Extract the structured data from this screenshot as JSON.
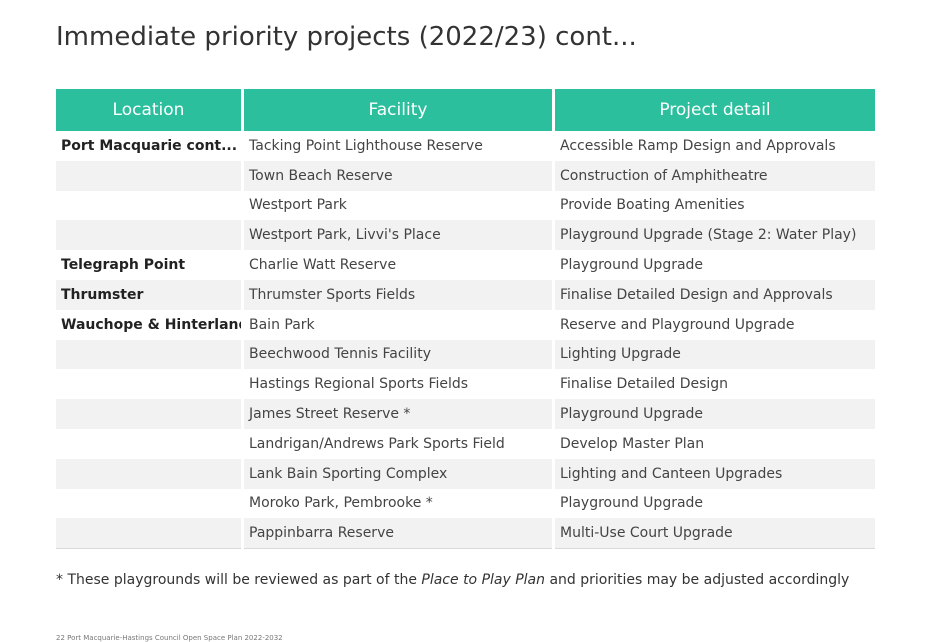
{
  "title": "Immediate priority projects (2022/23) cont...",
  "table": {
    "headers": [
      "Location",
      "Facility",
      "Project detail"
    ],
    "rows": [
      {
        "location": "Port Macquarie cont...",
        "facility": "Tacking Point Lighthouse Reserve",
        "detail": "Accessible Ramp Design and Approvals"
      },
      {
        "location": "",
        "facility": "Town Beach Reserve",
        "detail": "Construction of Amphitheatre"
      },
      {
        "location": "",
        "facility": "Westport Park",
        "detail": "Provide Boating Amenities"
      },
      {
        "location": "",
        "facility": "Westport Park, Livvi's Place",
        "detail": "Playground Upgrade (Stage 2: Water Play)"
      },
      {
        "location": "Telegraph Point",
        "facility": "Charlie Watt Reserve",
        "detail": "Playground Upgrade"
      },
      {
        "location": "Thrumster",
        "facility": "Thrumster Sports Fields",
        "detail": "Finalise Detailed Design and Approvals"
      },
      {
        "location": "Wauchope & Hinterland",
        "facility": "Bain Park",
        "detail": "Reserve and Playground Upgrade"
      },
      {
        "location": "",
        "facility": "Beechwood Tennis Facility",
        "detail": "Lighting Upgrade"
      },
      {
        "location": "",
        "facility": "Hastings Regional Sports Fields",
        "detail": "Finalise Detailed Design"
      },
      {
        "location": "",
        "facility": "James Street Reserve *",
        "detail": "Playground Upgrade"
      },
      {
        "location": "",
        "facility": "Landrigan/Andrews Park Sports Field",
        "detail": "Develop Master Plan"
      },
      {
        "location": "",
        "facility": "Lank Bain Sporting Complex",
        "detail": "Lighting and Canteen Upgrades"
      },
      {
        "location": "",
        "facility": "Moroko Park, Pembrooke *",
        "detail": "Playground Upgrade"
      },
      {
        "location": "",
        "facility": "Pappinbarra Reserve",
        "detail": "Multi-Use Court Upgrade"
      }
    ]
  },
  "footnote": {
    "before": "* These playgrounds will be reviewed as part of the ",
    "emphasis": "Place to Play Plan",
    "after": " and priorities may be adjusted accordingly"
  },
  "footer_text": "22 Port Macquarie-Hastings Council Open Space Plan 2022-2032",
  "colors": {
    "header_bg": "#2bbf9d",
    "header_text": "#ffffff",
    "row_shade": "#f2f2f2"
  }
}
